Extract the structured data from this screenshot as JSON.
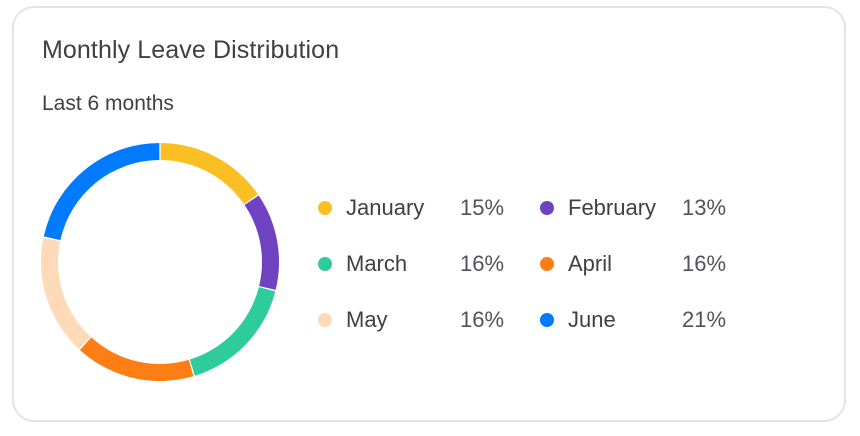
{
  "card": {
    "title": "Monthly Leave Distribution",
    "subtitle": "Last 6 months"
  },
  "chart_data": {
    "type": "pie",
    "variant": "donut",
    "title": "Monthly Leave Distribution",
    "subtitle": "Last 6 months",
    "legend_position": "right",
    "categories": [
      "January",
      "February",
      "March",
      "April",
      "May",
      "June"
    ],
    "values": [
      15,
      13,
      16,
      16,
      16,
      21
    ],
    "value_labels": [
      "15%",
      "13%",
      "16%",
      "16%",
      "16%",
      "21%"
    ],
    "colors": [
      "#fbbf24",
      "#6f42c1",
      "#2ecc9a",
      "#fd7e14",
      "#ffdab9",
      "#007bff"
    ]
  }
}
